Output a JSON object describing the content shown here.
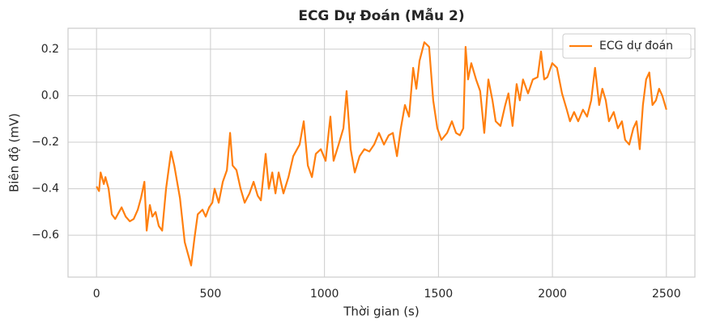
{
  "chart_data": {
    "type": "line",
    "title": "ECG Dự Đoán (Mẫu 2)",
    "xlabel": "Thời gian (s)",
    "ylabel": "Biên độ (mV)",
    "x": [
      0,
      11,
      18,
      32,
      39,
      53,
      67,
      82,
      110,
      128,
      146,
      163,
      181,
      195,
      210,
      220,
      234,
      245,
      259,
      273,
      288,
      305,
      327,
      341,
      366,
      387,
      415,
      430,
      444,
      465,
      479,
      494,
      508,
      518,
      536,
      554,
      572,
      586,
      597,
      614,
      632,
      650,
      671,
      689,
      707,
      721,
      742,
      756,
      771,
      785,
      799,
      820,
      842,
      863,
      891,
      909,
      927,
      945,
      962,
      984,
      1005,
      1026,
      1040,
      1062,
      1083,
      1097,
      1115,
      1133,
      1154,
      1175,
      1197,
      1218,
      1239,
      1261,
      1282,
      1300,
      1318,
      1335,
      1353,
      1371,
      1389,
      1403,
      1417,
      1438,
      1459,
      1477,
      1495,
      1513,
      1538,
      1559,
      1577,
      1594,
      1609,
      1619,
      1630,
      1644,
      1665,
      1683,
      1701,
      1719,
      1737,
      1751,
      1772,
      1793,
      1807,
      1825,
      1843,
      1857,
      1871,
      1893,
      1914,
      1935,
      1950,
      1964,
      1978,
      1999,
      2020,
      2042,
      2063,
      2077,
      2095,
      2113,
      2134,
      2152,
      2170,
      2187,
      2205,
      2219,
      2234,
      2248,
      2269,
      2287,
      2305,
      2319,
      2337,
      2355,
      2369,
      2383,
      2397,
      2411,
      2425,
      2439,
      2454,
      2468,
      2482,
      2500
    ],
    "series": [
      {
        "name": "ECG dự đoán",
        "color": "#ff7f0e",
        "values": [
          -0.39,
          -0.41,
          -0.33,
          -0.38,
          -0.35,
          -0.4,
          -0.51,
          -0.53,
          -0.48,
          -0.52,
          -0.54,
          -0.53,
          -0.49,
          -0.44,
          -0.37,
          -0.58,
          -0.47,
          -0.52,
          -0.5,
          -0.56,
          -0.58,
          -0.4,
          -0.24,
          -0.3,
          -0.44,
          -0.63,
          -0.73,
          -0.61,
          -0.51,
          -0.49,
          -0.52,
          -0.48,
          -0.46,
          -0.4,
          -0.46,
          -0.37,
          -0.32,
          -0.16,
          -0.3,
          -0.32,
          -0.4,
          -0.46,
          -0.42,
          -0.37,
          -0.43,
          -0.45,
          -0.25,
          -0.4,
          -0.33,
          -0.42,
          -0.33,
          -0.42,
          -0.35,
          -0.26,
          -0.21,
          -0.11,
          -0.3,
          -0.35,
          -0.25,
          -0.23,
          -0.28,
          -0.09,
          -0.28,
          -0.21,
          -0.14,
          0.02,
          -0.23,
          -0.33,
          -0.26,
          -0.23,
          -0.24,
          -0.21,
          -0.16,
          -0.21,
          -0.17,
          -0.16,
          -0.26,
          -0.14,
          -0.04,
          -0.09,
          0.12,
          0.03,
          0.15,
          0.23,
          0.21,
          -0.02,
          -0.14,
          -0.19,
          -0.16,
          -0.11,
          -0.16,
          -0.17,
          -0.14,
          0.21,
          0.07,
          0.14,
          0.07,
          0.02,
          -0.16,
          0.07,
          -0.02,
          -0.11,
          -0.13,
          -0.04,
          0.01,
          -0.13,
          0.05,
          -0.02,
          0.07,
          0.01,
          0.07,
          0.08,
          0.19,
          0.07,
          0.08,
          0.14,
          0.12,
          0.01,
          -0.06,
          -0.11,
          -0.07,
          -0.11,
          -0.06,
          -0.09,
          -0.02,
          0.12,
          -0.04,
          0.03,
          -0.02,
          -0.11,
          -0.07,
          -0.14,
          -0.11,
          -0.19,
          -0.21,
          -0.14,
          -0.11,
          -0.23,
          -0.04,
          0.07,
          0.1,
          -0.04,
          -0.02,
          0.03,
          0.0,
          -0.06
        ]
      }
    ],
    "xlim": [
      -125,
      2625
    ],
    "ylim": [
      -0.78,
      0.29
    ],
    "xticks": [
      0,
      500,
      1000,
      1500,
      2000,
      2500
    ],
    "yticks": [
      {
        "value": -0.6,
        "label": "−0.6"
      },
      {
        "value": -0.4,
        "label": "−0.4"
      },
      {
        "value": -0.2,
        "label": "−0.2"
      },
      {
        "value": 0,
        "label": "0.0"
      },
      0.2
    ],
    "grid": true,
    "legend": "upper right"
  }
}
